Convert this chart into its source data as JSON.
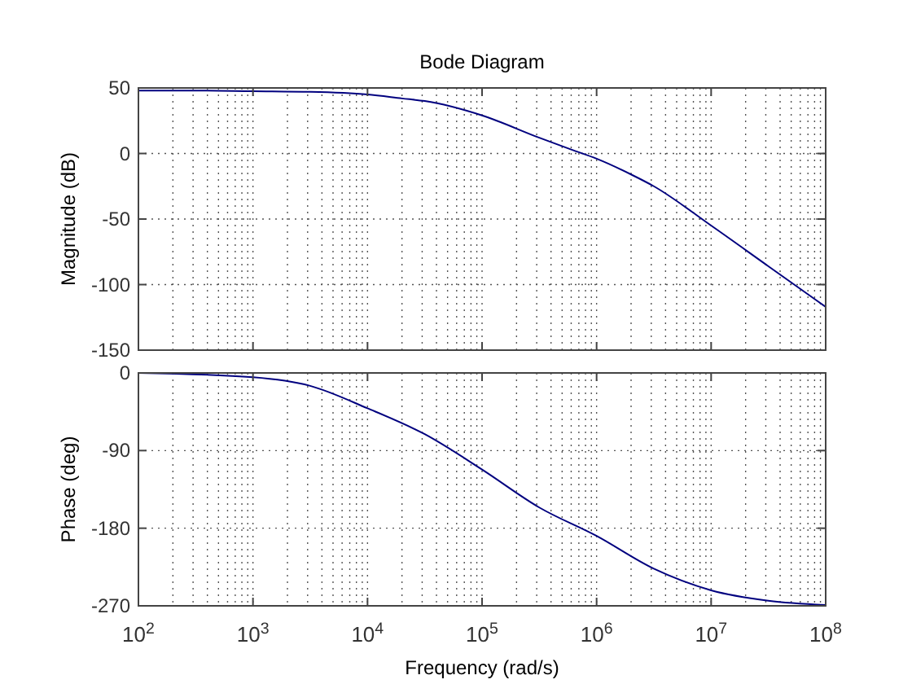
{
  "chart_data": [
    {
      "type": "line",
      "title": "Bode Diagram",
      "ylabel": "Magnitude (dB)",
      "log": "x",
      "grid": true,
      "tick_labels": "y",
      "xlim": [
        100,
        100000000
      ],
      "xticks": [
        {
          "value": 100,
          "label": null
        },
        {
          "value": 1000,
          "label": null
        },
        {
          "value": 10000,
          "label": null
        },
        {
          "value": 100000,
          "label": null
        },
        {
          "value": 1000000,
          "label": null
        },
        {
          "value": 10000000,
          "label": null
        },
        {
          "value": 100000000,
          "label": null
        }
      ],
      "ylim": [
        -150,
        50
      ],
      "yticks": [
        -150,
        -100,
        -50,
        0,
        50
      ],
      "series": [
        {
          "color": "#00007f",
          "x": [
            100,
            316,
            1000,
            3160,
            10000,
            20000,
            31600,
            100000,
            316000,
            600000,
            1000000,
            2000000,
            3160000,
            10000000,
            31600000,
            100000000
          ],
          "values": [
            48,
            48,
            47.5,
            47,
            45,
            42,
            40,
            29,
            12,
            3,
            -4,
            -16,
            -25,
            -55,
            -86,
            -117
          ]
        }
      ]
    },
    {
      "type": "line",
      "xlabel": "Frequency  (rad/s)",
      "ylabel": "Phase (deg)",
      "log": "x",
      "grid": true,
      "xlim": [
        100,
        100000000
      ],
      "xticks": [
        {
          "value": 100,
          "label": "10$^{2}$"
        },
        {
          "value": 1000,
          "label": "10$^{3}$"
        },
        {
          "value": 10000,
          "label": "10$^{4}$"
        },
        {
          "value": 100000,
          "label": "10$^{5}$"
        },
        {
          "value": 1000000,
          "label": "10$^{6}$"
        },
        {
          "value": 10000000,
          "label": "10$^{7}$"
        },
        {
          "value": 100000000,
          "label": "10$^{8}$"
        }
      ],
      "ylim": [
        -270,
        0
      ],
      "yticks": [
        -270,
        -180,
        -90,
        0
      ],
      "series": [
        {
          "color": "#00007f",
          "x": [
            100,
            1000,
            3160,
            10000,
            31600,
            100000,
            316000,
            1000000,
            3160000,
            10000000,
            31600000,
            100000000
          ],
          "values": [
            0,
            -5,
            -15,
            -41,
            -71,
            -112,
            -156,
            -189,
            -227,
            -252,
            -264,
            -269
          ]
        }
      ]
    }
  ]
}
